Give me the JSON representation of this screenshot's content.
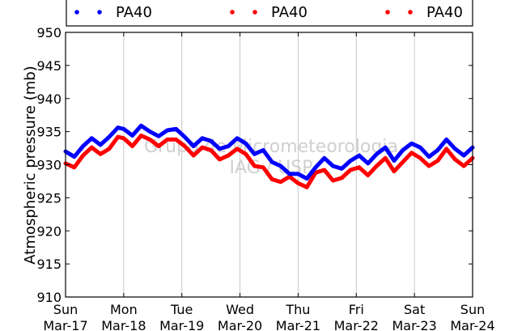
{
  "chart_data": {
    "type": "line",
    "ylabel": "Atmospheric pressure (mb)",
    "xlabel": "",
    "ylim": [
      910,
      950
    ],
    "yticks": [
      910,
      915,
      920,
      925,
      930,
      935,
      940,
      945,
      950
    ],
    "xlim": [
      0,
      7
    ],
    "grid": "vertical",
    "legend_placement": "top",
    "xtick_labels": [
      {
        "day": "Sun",
        "date": "Mar-17",
        "x": 0
      },
      {
        "day": "Mon",
        "date": "Mar-18",
        "x": 1
      },
      {
        "day": "Tue",
        "date": "Mar-19",
        "x": 2
      },
      {
        "day": "Wed",
        "date": "Mar-20",
        "x": 3
      },
      {
        "day": "Thu",
        "date": "Mar-21",
        "x": 4
      },
      {
        "day": "Fri",
        "date": "Mar-22",
        "x": 5
      },
      {
        "day": "Sat",
        "date": "Mar-23",
        "x": 6
      },
      {
        "day": "Sun",
        "date": "Mar-24",
        "x": 7
      }
    ],
    "series": [
      {
        "name": "PA40",
        "color": "#0000ff",
        "x": [
          0,
          0.15,
          0.3,
          0.45,
          0.6,
          0.75,
          0.9,
          1.0,
          1.15,
          1.3,
          1.45,
          1.6,
          1.75,
          1.9,
          2.05,
          2.2,
          2.35,
          2.5,
          2.65,
          2.8,
          2.95,
          3.1,
          3.25,
          3.4,
          3.55,
          3.7,
          3.85,
          4.0,
          4.15,
          4.3,
          4.45,
          4.6,
          4.75,
          4.9,
          5.05,
          5.2,
          5.35,
          5.5,
          5.65,
          5.8,
          5.95,
          6.1,
          6.25,
          6.4,
          6.55,
          6.7,
          6.85,
          7.0
        ],
        "y": [
          932.0,
          931.2,
          932.8,
          934.0,
          933.0,
          934.2,
          935.6,
          935.4,
          934.4,
          935.9,
          935.0,
          934.3,
          935.2,
          935.4,
          934.2,
          932.8,
          934.0,
          933.6,
          932.4,
          932.8,
          934.0,
          933.2,
          931.6,
          932.2,
          930.4,
          929.8,
          928.6,
          928.6,
          927.9,
          929.6,
          931.0,
          929.8,
          929.4,
          930.6,
          931.4,
          930.2,
          931.6,
          932.6,
          930.6,
          932.2,
          933.2,
          932.6,
          931.2,
          932.2,
          933.8,
          932.4,
          931.4,
          932.6
        ]
      },
      {
        "name": "PA40",
        "color": "#ff0000",
        "x": [
          0,
          0.15,
          0.3,
          0.45,
          0.6,
          0.75,
          0.9,
          1.0,
          1.15,
          1.3,
          1.45,
          1.6,
          1.75,
          1.9,
          2.05,
          2.2,
          2.35,
          2.5,
          2.65,
          2.8,
          2.95,
          3.1,
          3.25,
          3.4,
          3.55,
          3.7,
          3.85,
          4.0,
          4.15,
          4.3,
          4.45,
          4.6,
          4.75,
          4.9,
          5.05,
          5.2,
          5.35,
          5.5,
          5.65,
          5.8,
          5.95,
          6.1,
          6.25,
          6.4,
          6.55,
          6.7,
          6.85,
          7.0
        ],
        "y": [
          930.2,
          929.6,
          931.4,
          932.6,
          931.6,
          932.4,
          934.2,
          934.0,
          932.8,
          934.4,
          933.8,
          932.8,
          933.8,
          933.8,
          932.8,
          931.4,
          932.6,
          932.2,
          930.8,
          931.4,
          932.4,
          931.6,
          929.8,
          929.6,
          927.8,
          927.4,
          928.2,
          927.2,
          926.6,
          928.8,
          929.2,
          927.6,
          928.0,
          929.2,
          929.6,
          928.4,
          929.8,
          931.0,
          929.0,
          930.4,
          931.8,
          931.0,
          929.8,
          930.6,
          932.4,
          930.8,
          929.8,
          931.0
        ]
      },
      {
        "name": "PA40",
        "color": "#ff0000",
        "x": [],
        "y": []
      }
    ],
    "annotations": [
      "Grupo de Micrometeorologia",
      "IAG / USP"
    ]
  }
}
